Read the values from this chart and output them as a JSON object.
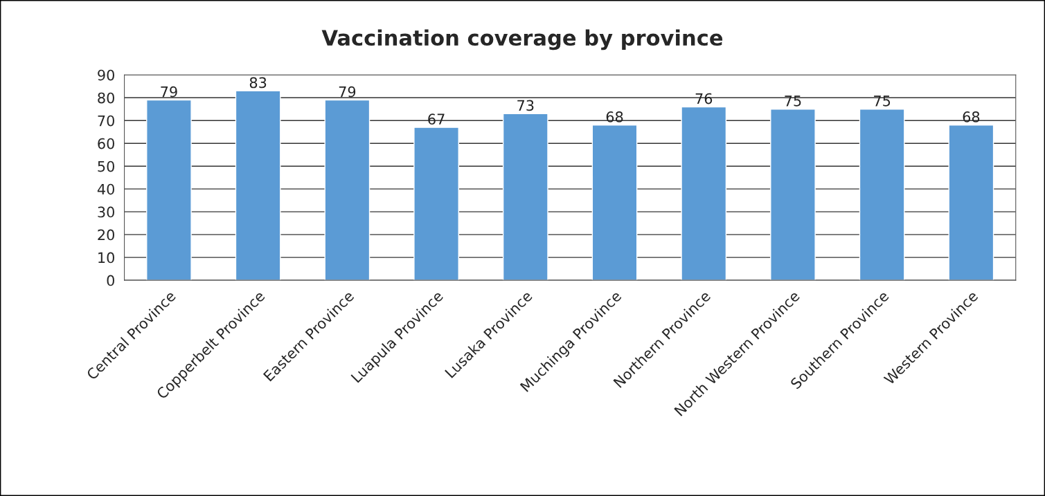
{
  "chart_data": {
    "type": "bar",
    "title": "Vaccination coverage by province",
    "categories": [
      "Central Province",
      "Copperbelt Province",
      "Eastern Province",
      "Luapula Province",
      "Lusaka Province",
      "Muchinga Province",
      "Northern Province",
      "North Western Province",
      "Southern Province",
      "Western Province"
    ],
    "values": [
      79,
      83,
      79,
      67,
      73,
      68,
      76,
      75,
      75,
      68
    ],
    "color": "#5b9bd5",
    "ylim": [
      0,
      90
    ],
    "yticks": [
      0,
      10,
      20,
      30,
      40,
      50,
      60,
      70,
      80,
      90
    ],
    "grid": "y",
    "data_labels": true
  }
}
